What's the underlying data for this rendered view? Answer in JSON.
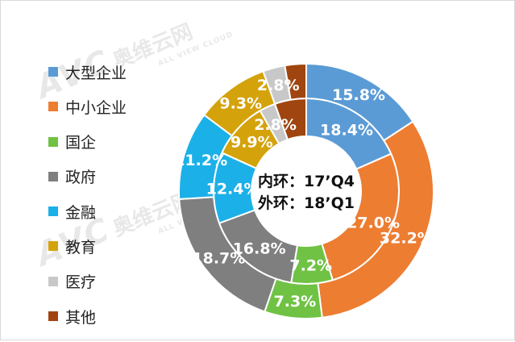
{
  "chart_data": {
    "type": "donut",
    "categories": [
      "大型企业",
      "中小企业",
      "国企",
      "政府",
      "金融",
      "教育",
      "医疗",
      "其他"
    ],
    "colors": [
      "#5b9bd5",
      "#ed7d31",
      "#70c244",
      "#7f7f7f",
      "#1cb0e8",
      "#d4a20b",
      "#c8c8c8",
      "#a0450f"
    ],
    "series": [
      {
        "name": "17'Q4",
        "ring": "inner",
        "values": [
          18.4,
          27.0,
          7.2,
          16.8,
          12.4,
          9.9,
          2.8,
          5.5
        ],
        "labels": [
          "18.4%",
          "27.0%",
          "7.2%",
          "16.8%",
          "12.4%",
          "9.9%",
          "2.8%",
          ""
        ]
      },
      {
        "name": "18'Q1",
        "ring": "outer",
        "values": [
          15.8,
          32.2,
          7.3,
          18.7,
          11.2,
          9.3,
          2.8,
          2.7
        ],
        "labels": [
          "15.8%",
          "32.2%",
          "7.3%",
          "18.7%",
          "11.2%",
          "9.3%",
          "2.8%",
          ""
        ]
      }
    ],
    "center_text": [
      "内环：17’Q4",
      "外环：18’Q1"
    ],
    "legend_position": "left"
  },
  "watermark": {
    "logo": "AVC",
    "name": "奥维云网",
    "sub": "ALL VIEW CLOUD"
  }
}
